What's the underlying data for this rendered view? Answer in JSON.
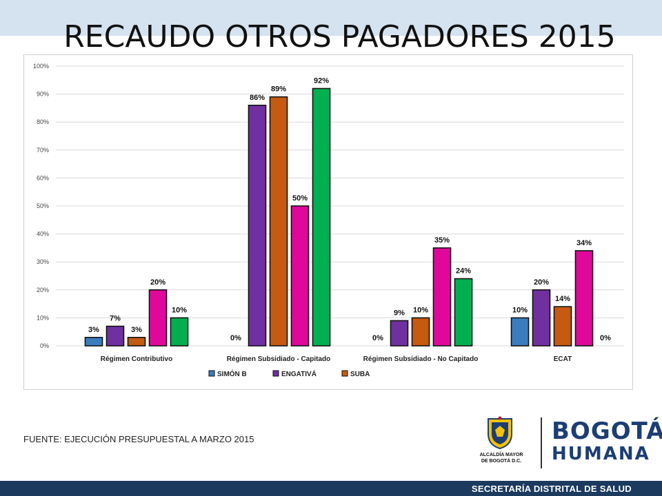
{
  "slide": {
    "title": "RECAUDO OTROS PAGADORES 2015",
    "source": "FUENTE: EJECUCIÓN PRESUPUESTAL A MARZO 2015",
    "footer": "SECRETARÍA DISTRITAL DE SALUD",
    "logo_left_text_1": "ALCALDÍA MAYOR",
    "logo_left_text_2": "DE BOGOTÁ D.C.",
    "logo_word_1": "BOGOTÁ",
    "logo_word_2": "HUMANA"
  },
  "chart_data": {
    "type": "bar",
    "categories": [
      "Régimen Contributivo",
      "Régimen Subsidiado - Capitado",
      "Régimen Subsidiado - No Capitado",
      "ECAT"
    ],
    "series": [
      {
        "name": "SIMÓN B",
        "color": "#3a7dbf",
        "values": [
          3,
          0,
          0,
          10
        ],
        "labels": [
          "3%",
          "0%",
          "0%",
          "10%"
        ]
      },
      {
        "name": "ENGATIVÁ",
        "color": "#7030a0",
        "values": [
          7,
          86,
          9,
          20
        ],
        "labels": [
          "7%",
          "86%",
          "9%",
          "20%"
        ]
      },
      {
        "name": "SUBA",
        "color": "#c55a11",
        "values": [
          3,
          89,
          10,
          14
        ],
        "labels": [
          "3%",
          "89%",
          "10%",
          "14%"
        ]
      },
      {
        "name": "",
        "color": "#e0089b",
        "values": [
          20,
          50,
          35,
          34
        ],
        "labels": [
          "20%",
          "50%",
          "35%",
          "34%"
        ]
      },
      {
        "name": "",
        "color": "#00b050",
        "values": [
          10,
          92,
          24,
          0
        ],
        "labels": [
          "10%",
          "92%",
          "24%",
          "0%"
        ]
      }
    ],
    "y_ticks": [
      "0%",
      "10%",
      "20%",
      "30%",
      "40%",
      "50%",
      "60%",
      "70%",
      "80%",
      "90%",
      "100%"
    ],
    "ylim": [
      0,
      100
    ],
    "grid": true,
    "legend": "bottom"
  }
}
